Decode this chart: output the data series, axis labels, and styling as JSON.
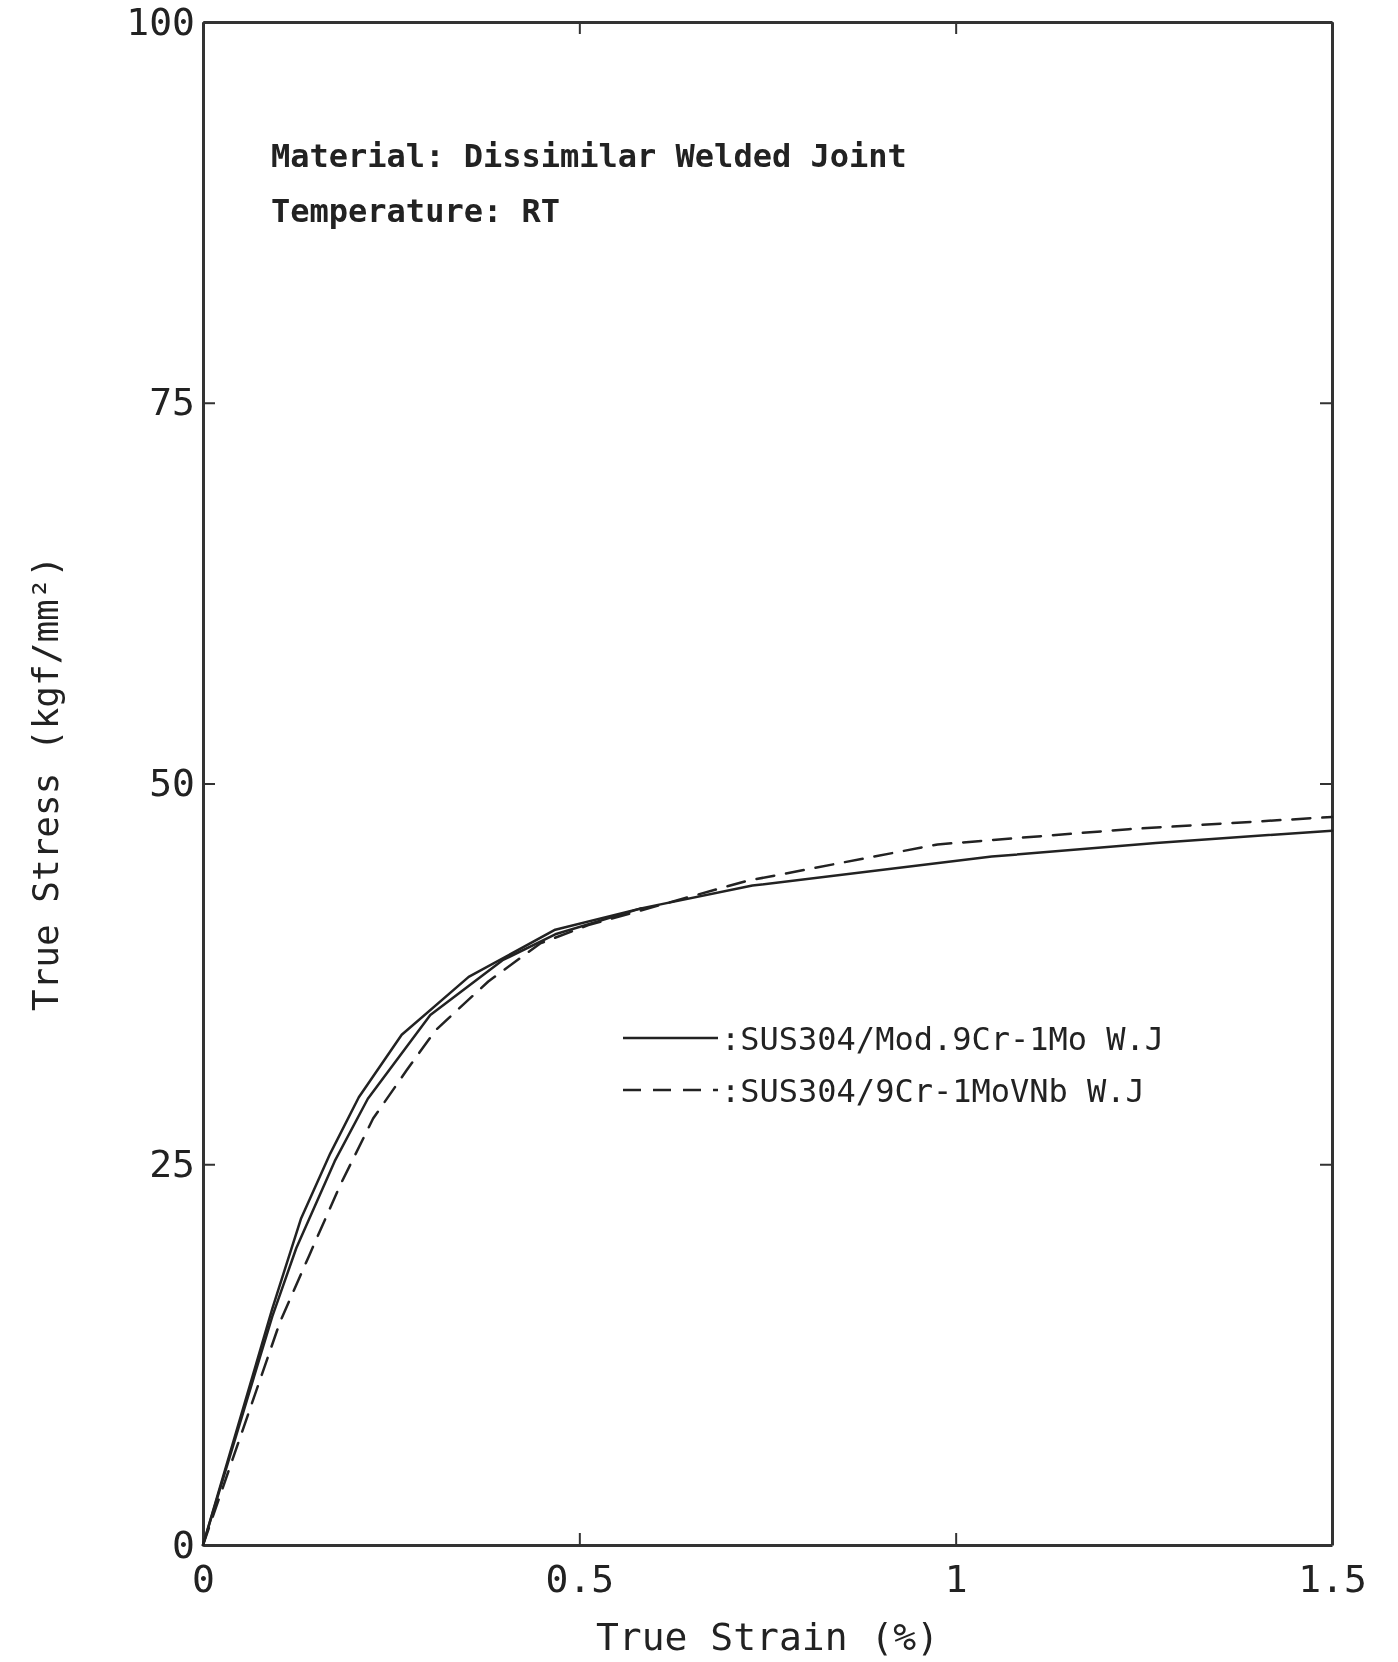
{
  "chart_data": {
    "type": "line",
    "xlabel": "True Strain  (%)",
    "ylabel": "True Stress  (kgf/mm²)",
    "annotations": [
      "Material: Dissimilar Welded Joint",
      "Temperature: RT"
    ],
    "xlim": [
      0,
      1.5
    ],
    "xticks": [
      0,
      0.5,
      1,
      1.5
    ],
    "ylim": [
      0,
      100
    ],
    "yticks": [
      0,
      25,
      50,
      75,
      100
    ],
    "grid": false,
    "legend": "right",
    "marker": "none",
    "series": [
      {
        "name": ":SUS304/Mod.9Cr-1Mo  W.J",
        "color": "#222222",
        "line_style": "solid",
        "x": [
          0,
          0.092,
          0.13,
          0.169,
          0.207,
          0.264,
          0.353,
          0.468,
          0.582,
          0.73,
          1.048,
          1.266,
          1.5
        ],
        "values": [
          0,
          15.5,
          21.4,
          25.7,
          29.4,
          33.5,
          37.3,
          40.4,
          41.8,
          43.3,
          45.2,
          46.1,
          46.9
        ]
      },
      {
        "name": ":SUS304/9Cr-1MoVNb  W.J",
        "color": "#222222",
        "line_style": "dashed",
        "x": [
          0,
          0.102,
          0.141,
          0.182,
          0.226,
          0.271,
          0.309,
          0.379,
          0.448,
          0.512,
          0.722,
          0.976,
          1.23,
          1.5
        ],
        "values": [
          0,
          14.6,
          19.0,
          23.6,
          28.0,
          31.2,
          33.8,
          37.0,
          39.5,
          40.7,
          43.6,
          46.0,
          47.0,
          47.8
        ]
      },
      {
        "color": "#222222",
        "line_style": "solid",
        "x": [
          0,
          0.092,
          0.124,
          0.175,
          0.219,
          0.302,
          0.398,
          0.468,
          0.582
        ],
        "values": [
          0,
          15.0,
          19.5,
          25.2,
          29.3,
          34.8,
          38.4,
          40.1,
          41.8
        ]
      }
    ]
  }
}
